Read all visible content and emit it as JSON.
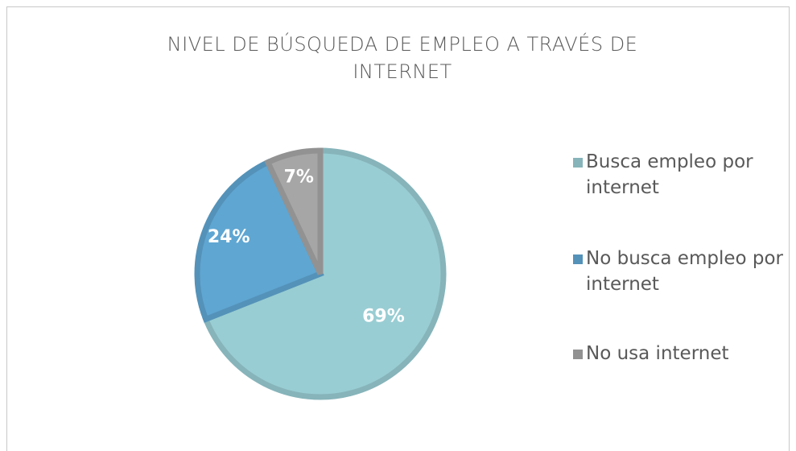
{
  "chart_data": {
    "type": "pie",
    "title": "NIVEL DE BÚSQUEDA DE EMPLEO A TRAVÉS DE INTERNET",
    "categories": [
      "Busca empleo por internet",
      "No busca empleo por internet",
      "No usa internet"
    ],
    "values": [
      69,
      24,
      7
    ],
    "value_labels": [
      "69%",
      "24%",
      "7%"
    ],
    "colors": [
      "#98cdd3",
      "#5fa6d2",
      "#a6a6a6"
    ],
    "legend": "right"
  }
}
